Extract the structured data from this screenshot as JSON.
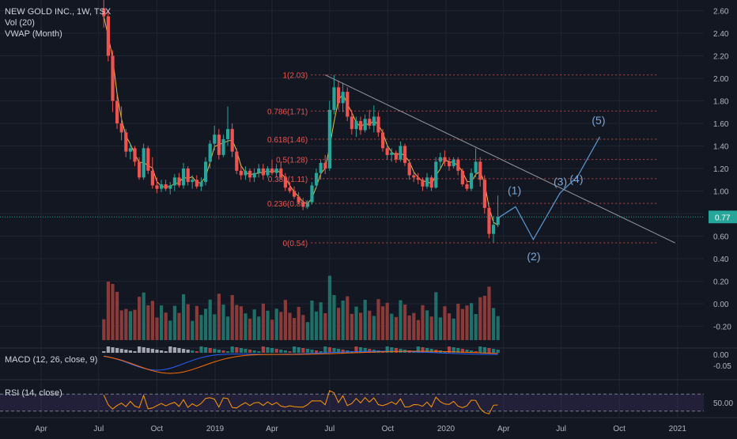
{
  "legend": {
    "symbol": "NEW GOLD INC., 1W, TSX",
    "volume": "Vol (20)",
    "vwap": "VWAP (Month)"
  },
  "price_tag": "0.77",
  "chart_data": {
    "type": "candlestick",
    "x_tick_labels": [
      "Apr",
      "Jul",
      "Oct",
      "2019",
      "Apr",
      "Jul",
      "Oct",
      "2020",
      "Apr",
      "Jul",
      "Oct",
      "2021"
    ],
    "x_tick_dates": [
      "2018-04-01",
      "2018-07-01",
      "2018-10-01",
      "2019-01-01",
      "2019-04-01",
      "2019-07-01",
      "2019-10-01",
      "2020-01-01",
      "2020-04-01",
      "2020-07-01",
      "2020-10-01",
      "2021-01-01"
    ],
    "price_axis": {
      "ticks": [
        "2.60",
        "2.40",
        "2.20",
        "2.00",
        "1.80",
        "1.60",
        "1.40",
        "1.20",
        "1.00",
        "0.80",
        "0.60",
        "0.40",
        "0.20",
        "0.00",
        "-0.20"
      ],
      "range": [
        -0.27,
        2.63
      ]
    },
    "last_price": 0.77,
    "fibonacci": [
      {
        "label": "1(2.03)",
        "level": 2.03
      },
      {
        "label": "0.786(1.71)",
        "level": 1.71
      },
      {
        "label": "0.618(1.46)",
        "level": 1.46
      },
      {
        "label": "0.5(1.28)",
        "level": 1.28
      },
      {
        "label": "0.382(1.11)",
        "level": 1.11
      },
      {
        "label": "0.236(0.89)",
        "level": 0.89
      },
      {
        "label": "0(0.54)",
        "level": 0.54
      }
    ],
    "trendline": [
      {
        "x": "2019-06-24",
        "y": 2.03
      },
      {
        "x": "2020-12-28",
        "y": 0.54
      }
    ],
    "elliott_path": [
      {
        "x": "2020-03-23",
        "y": 0.76,
        "label": ""
      },
      {
        "x": "2020-04-20",
        "y": 0.86,
        "label": "(1)"
      },
      {
        "x": "2020-05-18",
        "y": 0.57,
        "label": "(2)"
      },
      {
        "x": "2020-06-29",
        "y": 0.98,
        "label": "(3)"
      },
      {
        "x": "2020-07-27",
        "y": 1.13,
        "label": "(4)"
      },
      {
        "x": "2020-08-31",
        "y": 1.48,
        "label": "(5)"
      }
    ],
    "macd": {
      "label": "MACD (12, 26, close, 9)",
      "axis_ticks": [
        "0.00",
        "-0.05"
      ]
    },
    "rsi": {
      "label": "RSI (14, close)",
      "axis_ticks": [
        "50.00"
      ],
      "bands": [
        70,
        30
      ]
    },
    "weekly_candles": [
      {
        "date": "2018-07-09",
        "o": 2.62,
        "h": 2.72,
        "l": 2.45,
        "c": 2.55
      },
      {
        "date": "2018-07-16",
        "o": 2.55,
        "h": 2.6,
        "l": 2.15,
        "c": 2.2
      },
      {
        "date": "2018-07-23",
        "o": 2.2,
        "h": 2.25,
        "l": 1.7,
        "c": 1.8
      },
      {
        "date": "2018-07-30",
        "o": 1.8,
        "h": 1.85,
        "l": 1.55,
        "c": 1.6
      },
      {
        "date": "2018-08-06",
        "o": 1.6,
        "h": 1.75,
        "l": 1.45,
        "c": 1.52
      },
      {
        "date": "2018-08-13",
        "o": 1.52,
        "h": 1.55,
        "l": 1.3,
        "c": 1.35
      },
      {
        "date": "2018-08-20",
        "o": 1.35,
        "h": 1.42,
        "l": 1.28,
        "c": 1.38
      },
      {
        "date": "2018-08-27",
        "o": 1.38,
        "h": 1.4,
        "l": 1.22,
        "c": 1.26
      },
      {
        "date": "2018-09-03",
        "o": 1.26,
        "h": 1.3,
        "l": 1.1,
        "c": 1.12
      },
      {
        "date": "2018-09-10",
        "o": 1.12,
        "h": 1.42,
        "l": 1.1,
        "c": 1.38
      },
      {
        "date": "2018-09-17",
        "o": 1.38,
        "h": 1.4,
        "l": 1.15,
        "c": 1.18
      },
      {
        "date": "2018-09-24",
        "o": 1.18,
        "h": 1.3,
        "l": 1.02,
        "c": 1.05
      },
      {
        "date": "2018-10-01",
        "o": 1.05,
        "h": 1.12,
        "l": 0.98,
        "c": 1.02
      },
      {
        "date": "2018-10-08",
        "o": 1.02,
        "h": 1.1,
        "l": 0.99,
        "c": 1.06
      },
      {
        "date": "2018-10-15",
        "o": 1.06,
        "h": 1.1,
        "l": 1.0,
        "c": 1.02
      },
      {
        "date": "2018-10-22",
        "o": 1.02,
        "h": 1.08,
        "l": 0.97,
        "c": 1.05
      },
      {
        "date": "2018-10-29",
        "o": 1.05,
        "h": 1.15,
        "l": 1.0,
        "c": 1.12
      },
      {
        "date": "2018-11-05",
        "o": 1.12,
        "h": 1.16,
        "l": 1.03,
        "c": 1.05
      },
      {
        "date": "2018-11-12",
        "o": 1.05,
        "h": 1.25,
        "l": 1.02,
        "c": 1.2
      },
      {
        "date": "2018-11-19",
        "o": 1.2,
        "h": 1.22,
        "l": 1.05,
        "c": 1.08
      },
      {
        "date": "2018-11-26",
        "o": 1.08,
        "h": 1.14,
        "l": 1.02,
        "c": 1.1
      },
      {
        "date": "2018-12-03",
        "o": 1.1,
        "h": 1.14,
        "l": 1.02,
        "c": 1.04
      },
      {
        "date": "2018-12-10",
        "o": 1.04,
        "h": 1.12,
        "l": 1.0,
        "c": 1.08
      },
      {
        "date": "2018-12-17",
        "o": 1.08,
        "h": 1.3,
        "l": 1.05,
        "c": 1.26
      },
      {
        "date": "2018-12-24",
        "o": 1.26,
        "h": 1.45,
        "l": 1.2,
        "c": 1.42
      },
      {
        "date": "2018-12-31",
        "o": 1.42,
        "h": 1.58,
        "l": 1.36,
        "c": 1.5
      },
      {
        "date": "2019-01-07",
        "o": 1.5,
        "h": 1.55,
        "l": 1.28,
        "c": 1.32
      },
      {
        "date": "2019-01-14",
        "o": 1.32,
        "h": 1.5,
        "l": 1.3,
        "c": 1.46
      },
      {
        "date": "2019-01-21",
        "o": 1.46,
        "h": 1.75,
        "l": 1.4,
        "c": 1.55
      },
      {
        "date": "2019-01-28",
        "o": 1.55,
        "h": 1.6,
        "l": 1.3,
        "c": 1.35
      },
      {
        "date": "2019-02-04",
        "o": 1.35,
        "h": 1.38,
        "l": 1.15,
        "c": 1.18
      },
      {
        "date": "2019-02-11",
        "o": 1.18,
        "h": 1.22,
        "l": 1.1,
        "c": 1.14
      },
      {
        "date": "2019-02-18",
        "o": 1.14,
        "h": 1.22,
        "l": 1.1,
        "c": 1.18
      },
      {
        "date": "2019-02-25",
        "o": 1.18,
        "h": 1.2,
        "l": 1.08,
        "c": 1.12
      },
      {
        "date": "2019-03-04",
        "o": 1.12,
        "h": 1.2,
        "l": 1.08,
        "c": 1.16
      },
      {
        "date": "2019-03-11",
        "o": 1.16,
        "h": 1.24,
        "l": 1.12,
        "c": 1.2
      },
      {
        "date": "2019-03-18",
        "o": 1.2,
        "h": 1.24,
        "l": 1.1,
        "c": 1.14
      },
      {
        "date": "2019-03-25",
        "o": 1.14,
        "h": 1.22,
        "l": 1.12,
        "c": 1.2
      },
      {
        "date": "2019-04-01",
        "o": 1.2,
        "h": 1.28,
        "l": 1.14,
        "c": 1.16
      },
      {
        "date": "2019-04-08",
        "o": 1.16,
        "h": 1.24,
        "l": 1.12,
        "c": 1.2
      },
      {
        "date": "2019-04-15",
        "o": 1.2,
        "h": 1.26,
        "l": 1.1,
        "c": 1.12
      },
      {
        "date": "2019-04-22",
        "o": 1.12,
        "h": 1.16,
        "l": 1.0,
        "c": 1.03
      },
      {
        "date": "2019-04-29",
        "o": 1.03,
        "h": 1.08,
        "l": 0.98,
        "c": 1.0
      },
      {
        "date": "2019-05-06",
        "o": 1.0,
        "h": 1.04,
        "l": 0.93,
        "c": 0.95
      },
      {
        "date": "2019-05-13",
        "o": 0.95,
        "h": 0.99,
        "l": 0.88,
        "c": 0.9
      },
      {
        "date": "2019-05-20",
        "o": 0.9,
        "h": 0.94,
        "l": 0.83,
        "c": 0.86
      },
      {
        "date": "2019-05-27",
        "o": 0.86,
        "h": 0.92,
        "l": 0.84,
        "c": 0.9
      },
      {
        "date": "2019-06-03",
        "o": 0.9,
        "h": 1.08,
        "l": 0.88,
        "c": 1.05
      },
      {
        "date": "2019-06-10",
        "o": 1.05,
        "h": 1.2,
        "l": 1.02,
        "c": 1.16
      },
      {
        "date": "2019-06-17",
        "o": 1.16,
        "h": 1.28,
        "l": 1.1,
        "c": 1.25
      },
      {
        "date": "2019-06-24",
        "o": 1.25,
        "h": 1.32,
        "l": 1.15,
        "c": 1.2
      },
      {
        "date": "2019-07-01",
        "o": 1.2,
        "h": 1.8,
        "l": 1.18,
        "c": 1.72
      },
      {
        "date": "2019-07-08",
        "o": 1.72,
        "h": 2.03,
        "l": 1.68,
        "c": 1.92
      },
      {
        "date": "2019-07-15",
        "o": 1.92,
        "h": 1.98,
        "l": 1.72,
        "c": 1.78
      },
      {
        "date": "2019-07-22",
        "o": 1.78,
        "h": 1.96,
        "l": 1.7,
        "c": 1.88
      },
      {
        "date": "2019-07-29",
        "o": 1.88,
        "h": 1.92,
        "l": 1.62,
        "c": 1.66
      },
      {
        "date": "2019-08-05",
        "o": 1.66,
        "h": 1.72,
        "l": 1.5,
        "c": 1.55
      },
      {
        "date": "2019-08-12",
        "o": 1.55,
        "h": 1.66,
        "l": 1.48,
        "c": 1.62
      },
      {
        "date": "2019-08-19",
        "o": 1.62,
        "h": 1.66,
        "l": 1.5,
        "c": 1.54
      },
      {
        "date": "2019-08-26",
        "o": 1.54,
        "h": 1.68,
        "l": 1.52,
        "c": 1.64
      },
      {
        "date": "2019-09-02",
        "o": 1.64,
        "h": 1.72,
        "l": 1.55,
        "c": 1.58
      },
      {
        "date": "2019-09-09",
        "o": 1.58,
        "h": 1.76,
        "l": 1.52,
        "c": 1.66
      },
      {
        "date": "2019-09-16",
        "o": 1.66,
        "h": 1.7,
        "l": 1.48,
        "c": 1.52
      },
      {
        "date": "2019-09-23",
        "o": 1.52,
        "h": 1.55,
        "l": 1.35,
        "c": 1.38
      },
      {
        "date": "2019-09-30",
        "o": 1.38,
        "h": 1.42,
        "l": 1.28,
        "c": 1.32
      },
      {
        "date": "2019-10-07",
        "o": 1.32,
        "h": 1.38,
        "l": 1.26,
        "c": 1.34
      },
      {
        "date": "2019-10-14",
        "o": 1.34,
        "h": 1.36,
        "l": 1.25,
        "c": 1.28
      },
      {
        "date": "2019-10-21",
        "o": 1.28,
        "h": 1.44,
        "l": 1.26,
        "c": 1.4
      },
      {
        "date": "2019-10-28",
        "o": 1.4,
        "h": 1.42,
        "l": 1.22,
        "c": 1.25
      },
      {
        "date": "2019-11-04",
        "o": 1.25,
        "h": 1.28,
        "l": 1.1,
        "c": 1.14
      },
      {
        "date": "2019-11-11",
        "o": 1.14,
        "h": 1.18,
        "l": 1.08,
        "c": 1.12
      },
      {
        "date": "2019-11-18",
        "o": 1.12,
        "h": 1.16,
        "l": 1.06,
        "c": 1.1
      },
      {
        "date": "2019-11-25",
        "o": 1.1,
        "h": 1.12,
        "l": 1.0,
        "c": 1.04
      },
      {
        "date": "2019-12-02",
        "o": 1.04,
        "h": 1.16,
        "l": 1.02,
        "c": 1.12
      },
      {
        "date": "2019-12-09",
        "o": 1.12,
        "h": 1.14,
        "l": 1.0,
        "c": 1.03
      },
      {
        "date": "2019-12-16",
        "o": 1.03,
        "h": 1.3,
        "l": 1.02,
        "c": 1.26
      },
      {
        "date": "2019-12-23",
        "o": 1.26,
        "h": 1.34,
        "l": 1.2,
        "c": 1.3
      },
      {
        "date": "2019-12-30",
        "o": 1.3,
        "h": 1.36,
        "l": 1.22,
        "c": 1.26
      },
      {
        "date": "2020-01-06",
        "o": 1.26,
        "h": 1.3,
        "l": 1.18,
        "c": 1.22
      },
      {
        "date": "2020-01-13",
        "o": 1.22,
        "h": 1.3,
        "l": 1.2,
        "c": 1.28
      },
      {
        "date": "2020-01-20",
        "o": 1.28,
        "h": 1.3,
        "l": 1.14,
        "c": 1.18
      },
      {
        "date": "2020-01-27",
        "o": 1.18,
        "h": 1.2,
        "l": 1.04,
        "c": 1.06
      },
      {
        "date": "2020-02-03",
        "o": 1.06,
        "h": 1.1,
        "l": 1.0,
        "c": 1.02
      },
      {
        "date": "2020-02-10",
        "o": 1.02,
        "h": 1.2,
        "l": 1.0,
        "c": 1.16
      },
      {
        "date": "2020-02-17",
        "o": 1.16,
        "h": 1.38,
        "l": 1.12,
        "c": 1.26
      },
      {
        "date": "2020-02-24",
        "o": 1.26,
        "h": 1.3,
        "l": 1.04,
        "c": 1.1
      },
      {
        "date": "2020-03-02",
        "o": 1.1,
        "h": 1.14,
        "l": 0.8,
        "c": 0.85
      },
      {
        "date": "2020-03-09",
        "o": 0.85,
        "h": 0.86,
        "l": 0.58,
        "c": 0.62
      },
      {
        "date": "2020-03-16",
        "o": 0.62,
        "h": 0.78,
        "l": 0.54,
        "c": 0.7
      },
      {
        "date": "2020-03-23",
        "o": 0.7,
        "h": 0.96,
        "l": 0.68,
        "c": 0.77
      }
    ]
  }
}
